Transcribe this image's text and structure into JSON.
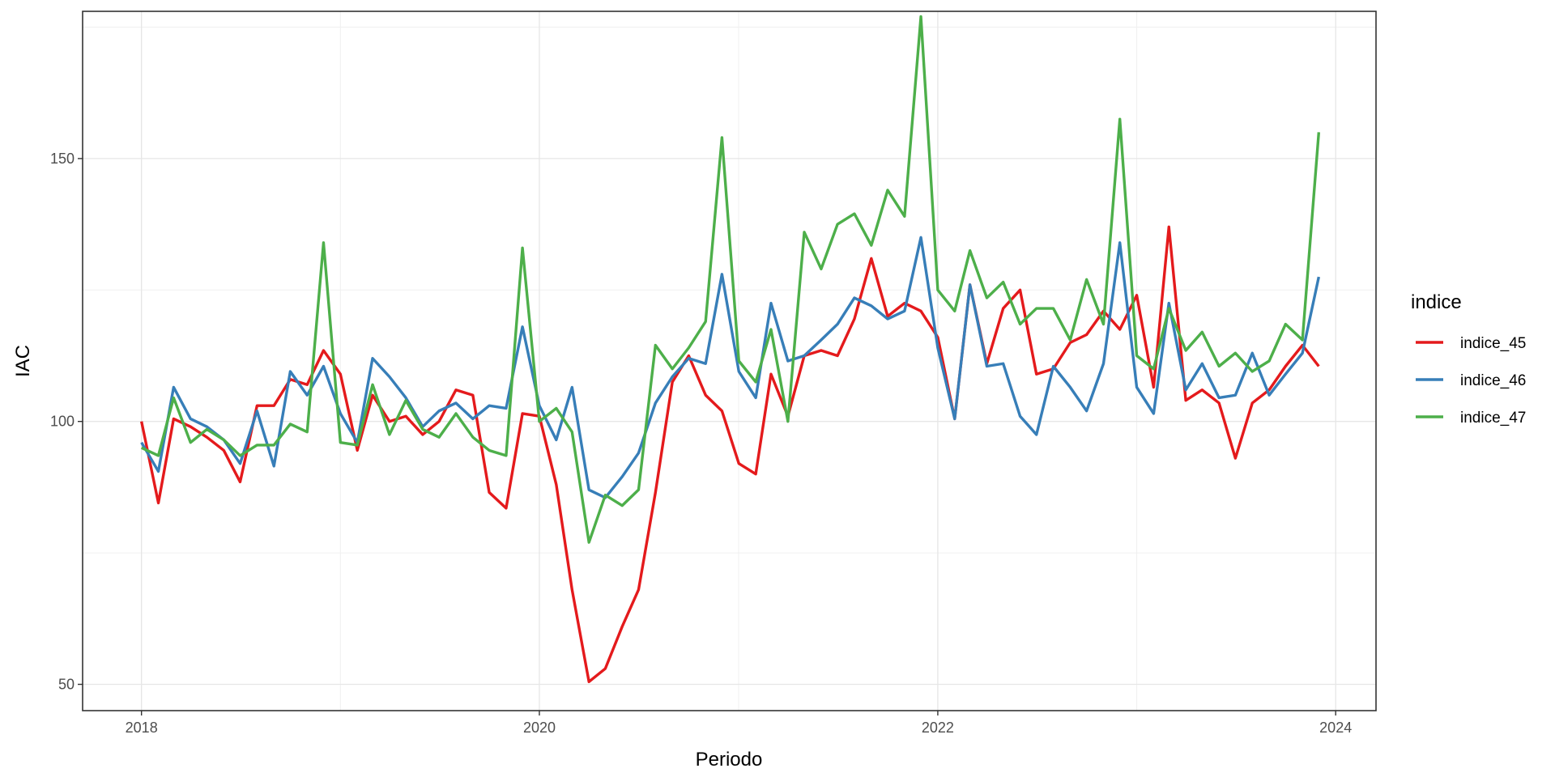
{
  "chart_data": {
    "type": "line",
    "xlabel": "Periodo",
    "ylabel": "IAC",
    "xlim": [
      "2017-09-15",
      "2024-03-15"
    ],
    "ylim": [
      45,
      178
    ],
    "x_ticks": [
      {
        "value": "2018-01-01",
        "label": "2018"
      },
      {
        "value": "2020-01-01",
        "label": "2020"
      },
      {
        "value": "2022-01-01",
        "label": "2022"
      },
      {
        "value": "2024-01-01",
        "label": "2024"
      }
    ],
    "y_ticks": [
      {
        "value": 50,
        "label": "50"
      },
      {
        "value": 100,
        "label": "100"
      },
      {
        "value": 150,
        "label": "150"
      }
    ],
    "grid": true,
    "legend": {
      "title": "indice",
      "position": "right"
    },
    "x": [
      "2018-01",
      "2018-02",
      "2018-03",
      "2018-04",
      "2018-05",
      "2018-06",
      "2018-07",
      "2018-08",
      "2018-09",
      "2018-10",
      "2018-11",
      "2018-12",
      "2019-01",
      "2019-02",
      "2019-03",
      "2019-04",
      "2019-05",
      "2019-06",
      "2019-07",
      "2019-08",
      "2019-09",
      "2019-10",
      "2019-11",
      "2019-12",
      "2020-01",
      "2020-02",
      "2020-03",
      "2020-04",
      "2020-05",
      "2020-06",
      "2020-07",
      "2020-08",
      "2020-09",
      "2020-10",
      "2020-11",
      "2020-12",
      "2021-01",
      "2021-02",
      "2021-03",
      "2021-04",
      "2021-05",
      "2021-06",
      "2021-07",
      "2021-08",
      "2021-09",
      "2021-10",
      "2021-11",
      "2021-12",
      "2022-01",
      "2022-02",
      "2022-03",
      "2022-04",
      "2022-05",
      "2022-06",
      "2022-07",
      "2022-08",
      "2022-09",
      "2022-10",
      "2022-11",
      "2022-12",
      "2023-01",
      "2023-02",
      "2023-03",
      "2023-04",
      "2023-05",
      "2023-06",
      "2023-07",
      "2023-08",
      "2023-09",
      "2023-10",
      "2023-11",
      "2023-12"
    ],
    "series": [
      {
        "name": "indice_45",
        "color": "#E41A1C",
        "values": [
          100,
          84.5,
          100.5,
          99,
          97,
          94.5,
          88.5,
          103,
          103,
          108,
          107,
          113.5,
          109,
          94.5,
          105,
          100,
          101,
          97.5,
          100,
          106,
          105,
          86.5,
          83.5,
          101.5,
          101,
          88,
          68,
          50.5,
          53,
          61,
          68,
          86.5,
          107.5,
          112.5,
          105,
          102,
          92,
          90,
          109,
          101,
          112.5,
          113.5,
          112.5,
          119.5,
          131,
          120,
          122.5,
          121,
          116,
          100.5,
          126,
          111,
          121.5,
          125,
          109,
          110,
          115,
          116.5,
          121,
          117.5,
          124,
          106.5,
          137,
          104,
          106,
          103.5,
          93,
          103.5,
          106,
          110.5,
          114.5,
          110.5
        ]
      },
      {
        "name": "indice_46",
        "color": "#377EB8",
        "values": [
          96,
          90.5,
          106.5,
          100.5,
          99,
          96.5,
          92,
          102,
          91.5,
          109.5,
          105,
          110.5,
          101.5,
          96,
          112,
          108.5,
          104.5,
          99,
          102,
          103.5,
          100.5,
          103,
          102.5,
          118,
          103,
          96.5,
          106.5,
          87,
          85.5,
          89.5,
          94,
          103.5,
          108.5,
          112,
          111,
          128,
          109.5,
          104.5,
          122.5,
          111.5,
          112.5,
          115.5,
          118.5,
          123.5,
          122,
          119.5,
          121,
          135,
          114,
          100.5,
          126,
          110.5,
          111,
          101,
          97.5,
          110.5,
          106.5,
          102,
          111,
          134,
          106.5,
          101.5,
          122.5,
          106,
          111,
          104.5,
          105,
          113,
          105,
          109,
          113,
          127.5
        ]
      },
      {
        "name": "indice_47",
        "color": "#4DAF4A",
        "values": [
          95,
          93.5,
          104.5,
          96,
          98.5,
          96.5,
          93.5,
          95.5,
          95.5,
          99.5,
          98,
          134,
          96,
          95.5,
          107,
          97.5,
          104,
          98.5,
          97,
          101.5,
          97,
          94.5,
          93.5,
          133,
          100,
          102.5,
          98,
          77,
          86,
          84,
          87,
          114.5,
          110,
          114,
          119,
          154,
          111.5,
          107.5,
          117.5,
          100,
          136,
          129,
          137.5,
          139.5,
          133.5,
          144,
          139,
          177,
          125,
          121,
          132.5,
          123.5,
          126.5,
          118.5,
          121.5,
          121.5,
          115.5,
          127,
          118.5,
          157.5,
          112.5,
          110,
          121.5,
          113.5,
          117,
          110.5,
          113,
          109.5,
          111.5,
          118.5,
          115.5,
          155
        ]
      }
    ]
  }
}
